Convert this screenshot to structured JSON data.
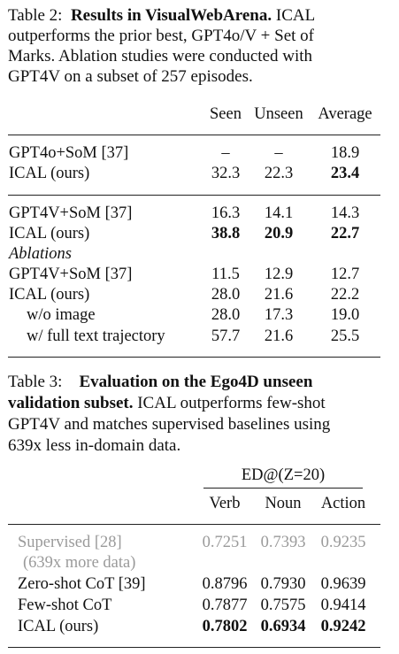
{
  "table2": {
    "caption_label": "Table 2:",
    "caption_bold": "Results in VisualWebArena.",
    "caption_line1_rest": "ICAL",
    "caption_line2": "outperforms the prior best, GPT4o/V + Set of",
    "caption_line3": "Marks.  Ablation studies were conducted with",
    "caption_line4": "GPT4V on a subset of 257 episodes.",
    "headers": [
      "Seen",
      "Unseen",
      "Average"
    ],
    "group1": [
      {
        "method": "GPT4o+SoM [37]",
        "seen": "–",
        "unseen": "–",
        "average": "18.9"
      },
      {
        "method": "ICAL (ours)",
        "seen": "32.3",
        "unseen": "22.3",
        "average": "23.4"
      }
    ],
    "group2": [
      {
        "method": "GPT4V+SoM [37]",
        "seen": "16.3",
        "unseen": "14.1",
        "average": "14.3"
      },
      {
        "method": "ICAL (ours)",
        "seen": "38.8",
        "unseen": "20.9",
        "average": "22.7"
      }
    ],
    "ablations_label": "Ablations",
    "group3": [
      {
        "method": "GPT4V+SoM [37]",
        "seen": "11.5",
        "unseen": "12.9",
        "average": "12.7"
      },
      {
        "method": "ICAL (ours)",
        "seen": "28.0",
        "unseen": "21.6",
        "average": "22.2"
      },
      {
        "method": "w/o image",
        "seen": "28.0",
        "unseen": "17.3",
        "average": "19.0"
      },
      {
        "method": "w/ full text trajectory",
        "seen": "57.7",
        "unseen": "21.6",
        "average": "25.5"
      }
    ]
  },
  "table3": {
    "caption_label": "Table 3:",
    "caption_bold1": "Evaluation on the Ego4D unseen",
    "caption_bold2": "validation subset.",
    "caption_line2_rest": "ICAL outperforms few-shot",
    "caption_line3": "GPT4V and matches supervised baselines using",
    "caption_line4": "639x less in-domain data.",
    "group_header": "ED@(Z=20)",
    "headers": [
      "Verb",
      "Noun",
      "Action"
    ],
    "supervised": {
      "method": "Supervised [28]",
      "note": "(639x more data)",
      "verb": "0.7251",
      "noun": "0.7393",
      "action": "0.9235"
    },
    "rows": [
      {
        "method": "Zero-shot CoT [39]",
        "verb": "0.8796",
        "noun": "0.7930",
        "action": "0.9639"
      },
      {
        "method": "Few-shot CoT",
        "verb": "0.7877",
        "noun": "0.7575",
        "action": "0.9414"
      },
      {
        "method": "ICAL (ours)",
        "verb": "0.7802",
        "noun": "0.6934",
        "action": "0.9242"
      }
    ]
  }
}
